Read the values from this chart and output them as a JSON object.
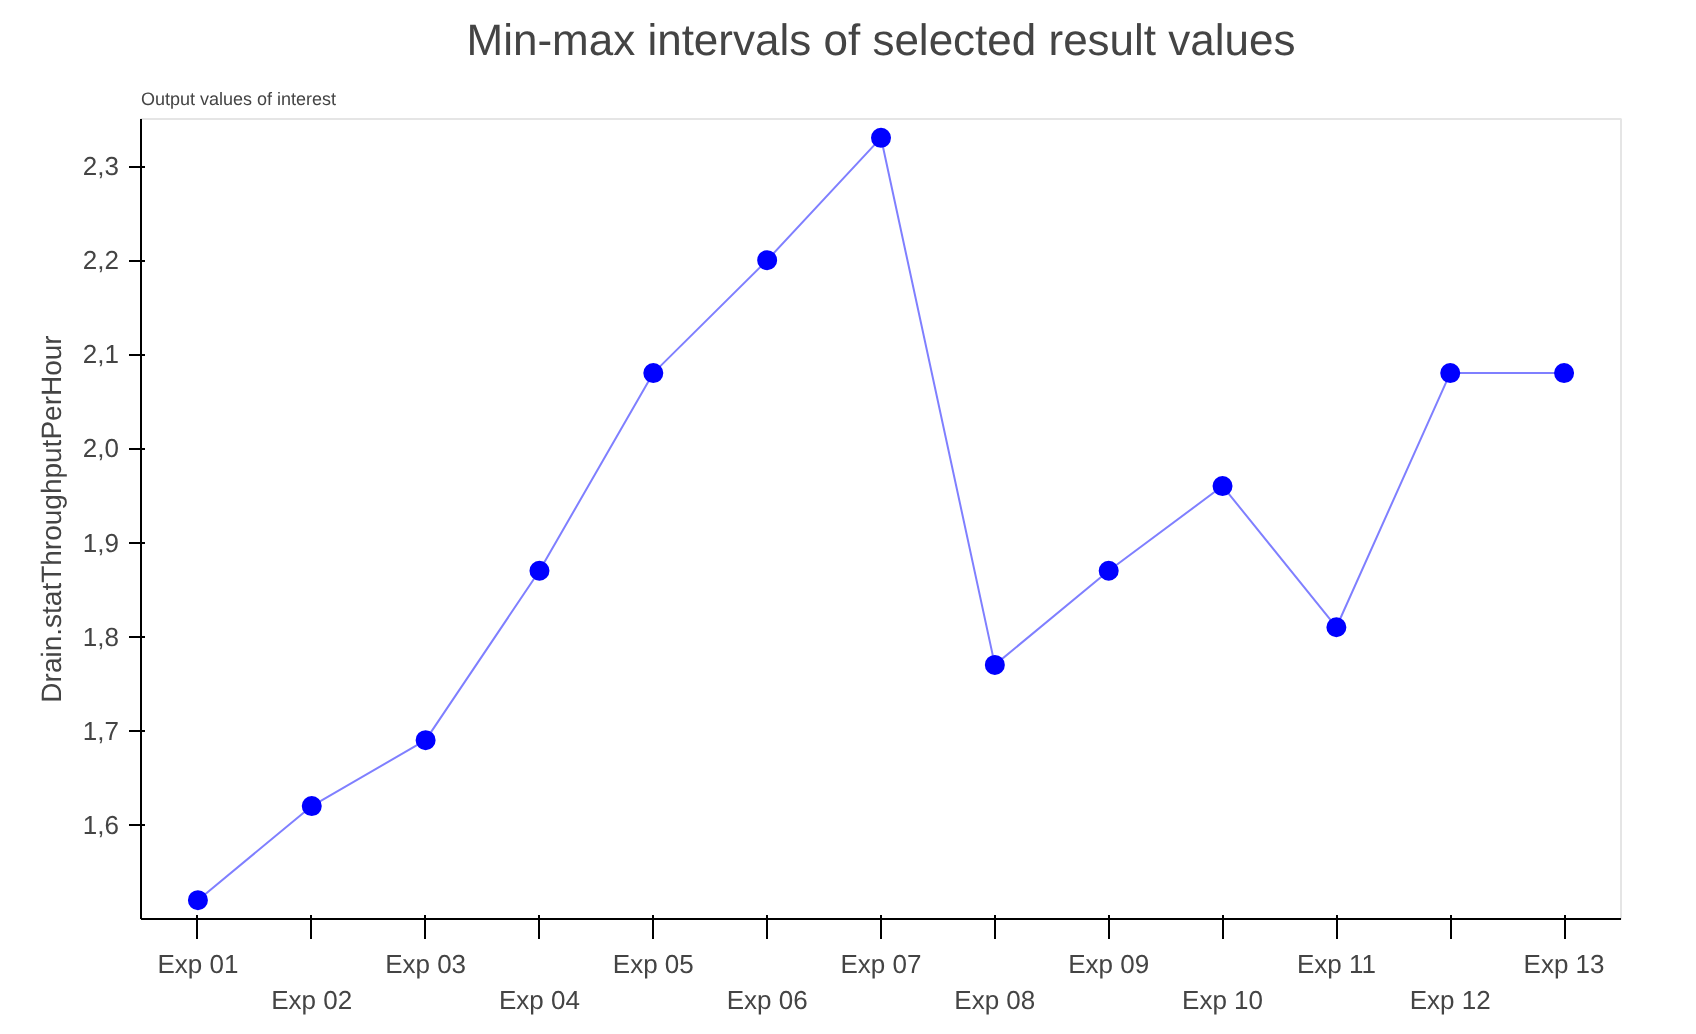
{
  "chart_data": {
    "type": "line",
    "title": "Min-max intervals of selected result values",
    "ylabel": "Drain.statThroughputPerHour",
    "annotations": [
      "Output values of interest"
    ],
    "categories": [
      "Exp 01",
      "Exp 02",
      "Exp 03",
      "Exp 04",
      "Exp 05",
      "Exp 06",
      "Exp 07",
      "Exp 08",
      "Exp 09",
      "Exp 10",
      "Exp 11",
      "Exp 12",
      "Exp 13"
    ],
    "series": [
      {
        "color": "#0000ff",
        "values": [
          1.52,
          1.62,
          1.69,
          1.87,
          2.08,
          2.2,
          2.33,
          1.77,
          1.87,
          1.96,
          1.81,
          2.08,
          2.08
        ]
      }
    ],
    "ylim": [
      1.5,
      2.35
    ],
    "yticks": [
      {
        "value": 1.6,
        "label": "1,6"
      },
      {
        "value": 1.7,
        "label": "1,7"
      },
      {
        "value": 1.8,
        "label": "1,8"
      },
      {
        "value": 1.9,
        "label": "1,9"
      },
      {
        "value": 2.0,
        "label": "2,0"
      },
      {
        "value": 2.1,
        "label": "2,1"
      },
      {
        "value": 2.2,
        "label": "2,2"
      },
      {
        "value": 2.3,
        "label": "2,3"
      }
    ],
    "marker": "circle",
    "line_style": "solid",
    "grid": false
  }
}
